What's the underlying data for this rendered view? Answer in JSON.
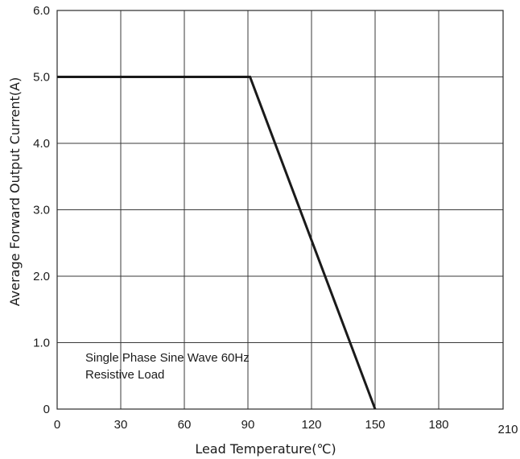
{
  "chart_data": {
    "type": "line",
    "xlabel": "Lead Temperature(℃)",
    "ylabel": "Average Forward Output Current(A)",
    "xlim": [
      0,
      210
    ],
    "ylim": [
      0,
      6
    ],
    "x_ticks": [
      {
        "value": 0,
        "label": "0"
      },
      {
        "value": 30,
        "label": "30"
      },
      {
        "value": 60,
        "label": "60"
      },
      {
        "value": 90,
        "label": "90"
      },
      {
        "value": 120,
        "label": "120"
      },
      {
        "value": 150,
        "label": "150"
      },
      {
        "value": 180,
        "label": "180"
      },
      {
        "value": 210,
        "label": "210"
      }
    ],
    "y_ticks": [
      {
        "value": 0,
        "label": "0"
      },
      {
        "value": 1,
        "label": "1.0"
      },
      {
        "value": 2,
        "label": "2.0"
      },
      {
        "value": 3,
        "label": "3.0"
      },
      {
        "value": 4,
        "label": "4.0"
      },
      {
        "value": 5,
        "label": "5.0"
      },
      {
        "value": 6,
        "label": "6.0"
      }
    ],
    "grid": true,
    "series": [
      {
        "x": [
          0,
          91,
          150
        ],
        "y": [
          5.0,
          5.0,
          0
        ],
        "color": "#1a1a1a"
      }
    ],
    "annotations": [
      "Single Phase  Sine Wave 60Hz",
      "Resistive Load"
    ]
  }
}
